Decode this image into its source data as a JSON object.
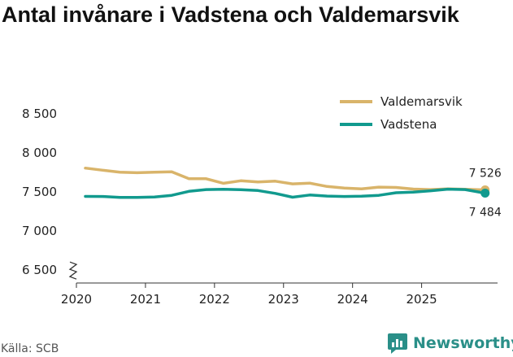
{
  "title": "Antal invånare i Vadstena och Valdemarsvik",
  "source": "Källa: SCB",
  "brand": "Newsworthy",
  "chart_data": {
    "type": "line",
    "title": "Antal invånare i Vadstena och Valdemarsvik",
    "xlabel": "",
    "ylabel": "",
    "x_ticks": [
      2020,
      2021,
      2022,
      2023,
      2024,
      2025
    ],
    "x_tick_labels": [
      "2020",
      "2021",
      "2022",
      "2023",
      "2024",
      "2025"
    ],
    "xlim": [
      2020,
      2026.1
    ],
    "y_ticks": [
      6500,
      7000,
      7500,
      8000,
      8500
    ],
    "y_tick_labels": [
      "6 500",
      "7 000",
      "7 500",
      "8 000",
      "8 500"
    ],
    "ylim": [
      6450,
      8550
    ],
    "y_axis_break": true,
    "grid": false,
    "legend_position": "top-right",
    "x": [
      2020.13,
      2020.38,
      2020.63,
      2020.88,
      2021.13,
      2021.38,
      2021.63,
      2021.88,
      2022.13,
      2022.38,
      2022.63,
      2022.88,
      2023.13,
      2023.38,
      2023.63,
      2023.88,
      2024.13,
      2024.38,
      2024.63,
      2024.88,
      2025.13,
      2025.38,
      2025.63,
      2025.92
    ],
    "series": [
      {
        "name": "Valdemarsvik",
        "color": "#d9b46a",
        "values": [
          7805,
          7778,
          7752,
          7745,
          7752,
          7757,
          7668,
          7668,
          7610,
          7642,
          7628,
          7637,
          7603,
          7612,
          7570,
          7549,
          7538,
          7561,
          7557,
          7536,
          7530,
          7538,
          7534,
          7526
        ],
        "end_label": "7 526"
      },
      {
        "name": "Vadstena",
        "color": "#119a8e",
        "values": [
          7443,
          7442,
          7430,
          7430,
          7435,
          7456,
          7507,
          7530,
          7533,
          7529,
          7518,
          7481,
          7432,
          7461,
          7447,
          7442,
          7446,
          7456,
          7490,
          7497,
          7515,
          7535,
          7530,
          7484
        ],
        "end_label": "7 484"
      }
    ]
  }
}
